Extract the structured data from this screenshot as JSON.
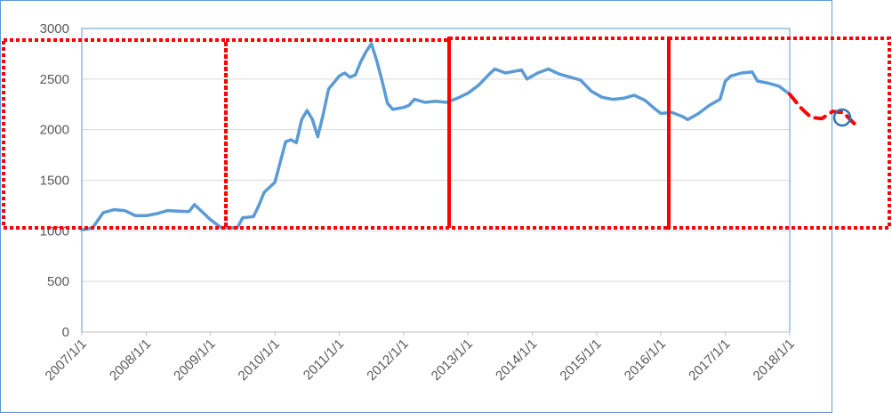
{
  "chart_data": {
    "type": "line",
    "title": "",
    "xlabel": "",
    "ylabel": "",
    "ylim": [
      0,
      3000
    ],
    "y_ticks": [
      "0",
      "500",
      "1000",
      "1500",
      "2000",
      "2500",
      "3000"
    ],
    "x_ticks": [
      "2007/1/1",
      "2008/1/1",
      "2009/1/1",
      "2010/1/1",
      "2011/1/1",
      "2012/1/1",
      "2013/1/1",
      "2014/1/1",
      "2015/1/1",
      "2016/1/1",
      "2017/1/1",
      "2018/1/1"
    ],
    "grid": "horizontal",
    "legend": "none",
    "series": [
      {
        "color": "#5b9bd5",
        "points": [
          [
            "2007/1/1",
            1010
          ],
          [
            "2007/3/1",
            1030
          ],
          [
            "2007/5/1",
            1180
          ],
          [
            "2007/7/1",
            1210
          ],
          [
            "2007/9/1",
            1200
          ],
          [
            "2007/11/1",
            1150
          ],
          [
            "2008/1/1",
            1150
          ],
          [
            "2008/3/1",
            1170
          ],
          [
            "2008/5/1",
            1200
          ],
          [
            "2008/7/1",
            1195
          ],
          [
            "2008/9/1",
            1190
          ],
          [
            "2008/10/1",
            1260
          ],
          [
            "2008/11/1",
            1210
          ],
          [
            "2009/1/1",
            1110
          ],
          [
            "2009/3/1",
            1030
          ],
          [
            "2009/6/1",
            1030
          ],
          [
            "2009/7/1",
            1130
          ],
          [
            "2009/9/1",
            1140
          ],
          [
            "2009/10/1",
            1250
          ],
          [
            "2009/11/1",
            1380
          ],
          [
            "2010/1/1",
            1480
          ],
          [
            "2010/3/1",
            1880
          ],
          [
            "2010/4/1",
            1900
          ],
          [
            "2010/5/1",
            1870
          ],
          [
            "2010/6/1",
            2100
          ],
          [
            "2010/7/1",
            2190
          ],
          [
            "2010/8/1",
            2100
          ],
          [
            "2010/9/1",
            1930
          ],
          [
            "2010/10/1",
            2150
          ],
          [
            "2010/11/1",
            2400
          ],
          [
            "2011/1/1",
            2530
          ],
          [
            "2011/2/1",
            2560
          ],
          [
            "2011/3/1",
            2520
          ],
          [
            "2011/4/1",
            2540
          ],
          [
            "2011/5/1",
            2670
          ],
          [
            "2011/6/1",
            2770
          ],
          [
            "2011/7/1",
            2850
          ],
          [
            "2011/8/1",
            2680
          ],
          [
            "2011/9/1",
            2480
          ],
          [
            "2011/10/1",
            2260
          ],
          [
            "2011/11/1",
            2200
          ],
          [
            "2012/1/1",
            2220
          ],
          [
            "2012/2/1",
            2240
          ],
          [
            "2012/3/1",
            2300
          ],
          [
            "2012/5/1",
            2270
          ],
          [
            "2012/7/1",
            2280
          ],
          [
            "2012/9/1",
            2270
          ],
          [
            "2012/11/1",
            2310
          ],
          [
            "2013/1/1",
            2360
          ],
          [
            "2013/3/1",
            2440
          ],
          [
            "2013/5/1",
            2550
          ],
          [
            "2013/6/1",
            2600
          ],
          [
            "2013/8/1",
            2560
          ],
          [
            "2013/10/1",
            2580
          ],
          [
            "2013/11/1",
            2590
          ],
          [
            "2013/12/1",
            2500
          ],
          [
            "2014/2/1",
            2560
          ],
          [
            "2014/4/1",
            2600
          ],
          [
            "2014/6/1",
            2550
          ],
          [
            "2014/8/1",
            2520
          ],
          [
            "2014/10/1",
            2490
          ],
          [
            "2014/12/1",
            2380
          ],
          [
            "2015/2/1",
            2320
          ],
          [
            "2015/4/1",
            2300
          ],
          [
            "2015/6/1",
            2310
          ],
          [
            "2015/8/1",
            2340
          ],
          [
            "2015/10/1",
            2290
          ],
          [
            "2015/12/1",
            2200
          ],
          [
            "2016/1/1",
            2160
          ],
          [
            "2016/3/1",
            2170
          ],
          [
            "2016/5/1",
            2130
          ],
          [
            "2016/6/1",
            2100
          ],
          [
            "2016/8/1",
            2160
          ],
          [
            "2016/10/1",
            2240
          ],
          [
            "2016/12/1",
            2300
          ],
          [
            "2017/1/1",
            2480
          ],
          [
            "2017/2/1",
            2530
          ],
          [
            "2017/4/1",
            2560
          ],
          [
            "2017/6/1",
            2570
          ],
          [
            "2017/7/1",
            2480
          ],
          [
            "2017/9/1",
            2460
          ],
          [
            "2017/11/1",
            2430
          ],
          [
            "2018/1/1",
            2350
          ]
        ]
      },
      {
        "color": "#ff0000",
        "style": "dashed",
        "points": [
          [
            "2018/1/1",
            2350
          ],
          [
            "2018/3/1",
            2220
          ],
          [
            "2018/5/1",
            2120
          ],
          [
            "2018/7/1",
            2110
          ],
          [
            "2018/9/1",
            2180
          ],
          [
            "2018/11/1",
            2170
          ],
          [
            "2019/1/1",
            2060
          ],
          [
            "2019/2/1",
            2100
          ]
        ]
      }
    ],
    "annotation_colors": {
      "period_boxes": "#ff0000",
      "marker_circle": "#2e75b6"
    }
  }
}
